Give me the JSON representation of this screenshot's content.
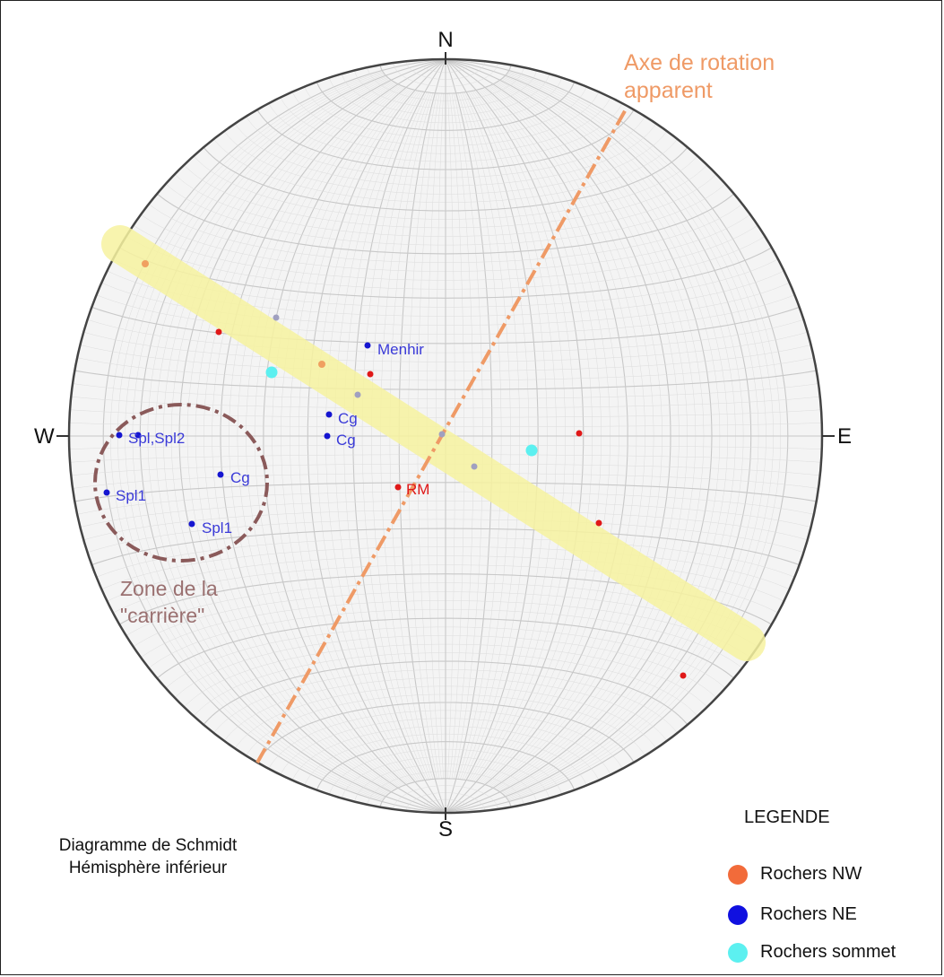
{
  "compass": {
    "north": "N",
    "south": "S",
    "east": "E",
    "west": "W"
  },
  "caption": {
    "line1": "Diagramme de Schmidt",
    "line2": "Hémisphère inférieur"
  },
  "legend": {
    "title": "LEGENDE",
    "items": [
      {
        "label": "Rochers NW",
        "color": "#f26b3a"
      },
      {
        "label": "Rochers NE",
        "color": "#1010e0"
      },
      {
        "label": "Rochers sommet",
        "color": "#5cf0f0"
      }
    ]
  },
  "annotations": {
    "axis_label_line1": "Axe de rotation",
    "axis_label_line2": "apparent",
    "zone_label_line1": "Zone de la",
    "zone_label_line2": "\"carrière\""
  },
  "point_labels": {
    "menhir": "Menhir",
    "cg1": "Cg",
    "cg2": "Cg",
    "cg3": "Cg",
    "spl_spl2": "Spl,Spl2",
    "spl1_a": "Spl1",
    "spl1_b": "Spl1",
    "rm": "RM"
  },
  "colors": {
    "accent_orange": "#ef9a66",
    "red_points": "#e01818",
    "blue_points": "#1515d0",
    "cyan_points": "#5cf0f0",
    "grey_points": "#a0a0c0",
    "band": "#f7f3a0",
    "zone_circle": "#8a5a5a"
  }
}
